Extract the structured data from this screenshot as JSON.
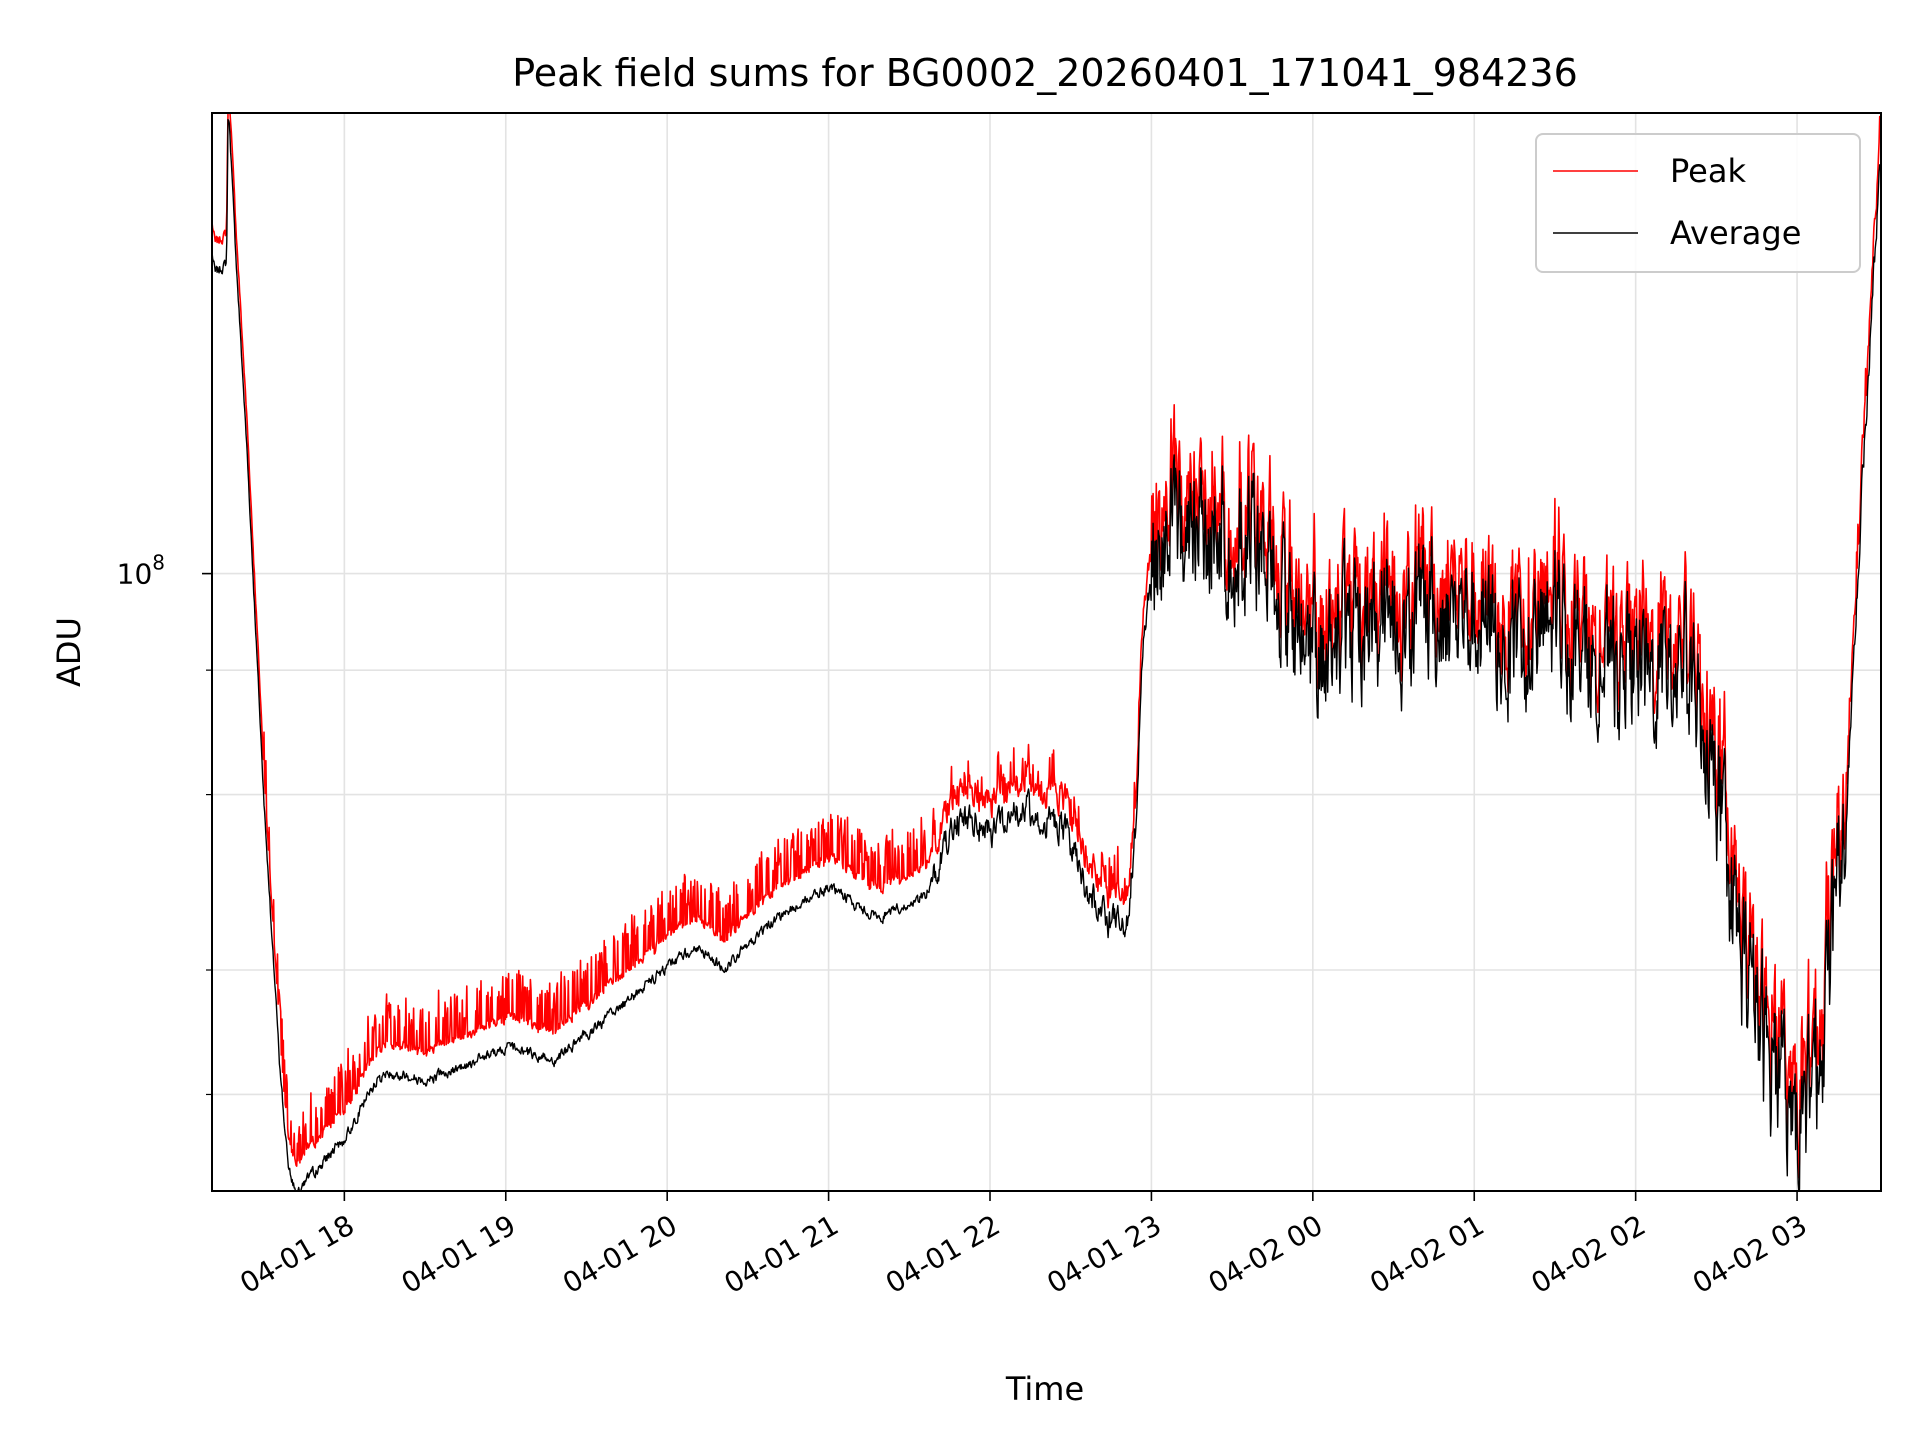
{
  "chart_data": {
    "type": "line",
    "title": "Peak field sums for BG0002_20260401_171041_984236",
    "xlabel": "Time",
    "ylabel": "ADU",
    "yscale": "log",
    "ylim": [
      24000000,
      290000000
    ],
    "xlim": [
      17.18,
      27.52
    ],
    "y_major_tick": {
      "value": 100000000,
      "label_base": "10",
      "label_exp": "8"
    },
    "y_minor_ticks": [
      30000000,
      40000000,
      60000000,
      80000000
    ],
    "x_ticks": [
      {
        "value": 18,
        "label": "04-01 18"
      },
      {
        "value": 19,
        "label": "04-01 19"
      },
      {
        "value": 20,
        "label": "04-01 20"
      },
      {
        "value": 21,
        "label": "04-01 21"
      },
      {
        "value": 22,
        "label": "04-01 22"
      },
      {
        "value": 23,
        "label": "04-01 23"
      },
      {
        "value": 24,
        "label": "04-02 00"
      },
      {
        "value": 25,
        "label": "04-02 01"
      },
      {
        "value": 26,
        "label": "04-02 02"
      },
      {
        "value": 27,
        "label": "04-02 03"
      }
    ],
    "grid": true,
    "legend": {
      "placement": "top-right"
    },
    "series": [
      {
        "name": "Peak",
        "color": "#ff0000",
        "role": "upper envelope, approx. 8% above Average with frequent spikes"
      },
      {
        "name": "Average",
        "color": "#000000",
        "x": [
          17.18,
          17.2,
          17.27,
          17.28,
          17.29,
          17.32,
          17.4,
          17.5,
          17.6,
          17.65,
          17.7,
          17.78,
          17.9,
          18.0,
          18.1,
          18.2,
          18.3,
          18.5,
          18.7,
          19.0,
          19.3,
          19.6,
          19.9,
          20.1,
          20.2,
          20.35,
          20.6,
          20.8,
          21.0,
          21.3,
          21.6,
          21.7,
          21.75,
          21.8,
          22.0,
          22.2,
          22.45,
          22.6,
          22.75,
          22.85,
          22.9,
          22.95,
          23.05,
          23.3,
          23.5,
          23.7,
          23.8,
          24.0,
          24.3,
          24.6,
          24.9,
          25.2,
          25.5,
          25.8,
          26.1,
          26.3,
          26.5,
          26.65,
          26.8,
          26.95,
          27.0,
          27.15,
          27.3,
          27.4,
          27.52
        ],
        "y": [
          210000000,
          200000000,
          205000000,
          290000000,
          280000000,
          220000000,
          130000000,
          60000000,
          32000000,
          25500000,
          24000000,
          24800000,
          26000000,
          27000000,
          29000000,
          31000000,
          31500000,
          31000000,
          31800000,
          33500000,
          32500000,
          35500000,
          39000000,
          41500000,
          42000000,
          40000000,
          44000000,
          46500000,
          48500000,
          45000000,
          47500000,
          52000000,
          55500000,
          57000000,
          55000000,
          58000000,
          56000000,
          48000000,
          44500000,
          45000000,
          55000000,
          85000000,
          110000000,
          112000000,
          108000000,
          103000000,
          95000000,
          82000000,
          90000000,
          88000000,
          92000000,
          85000000,
          88000000,
          80000000,
          78000000,
          82000000,
          62000000,
          42000000,
          33000000,
          30000000,
          27000000,
          34000000,
          55000000,
          120000000,
          270000000
        ]
      }
    ]
  }
}
